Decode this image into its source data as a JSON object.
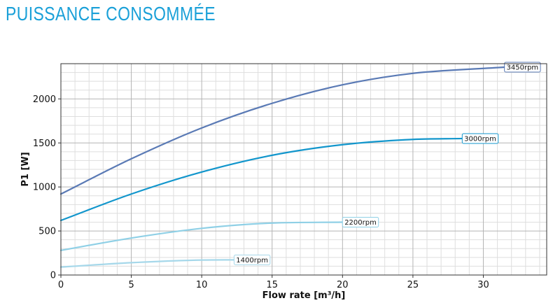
{
  "page": {
    "title": "PUISSANCE CONSOMMÉE"
  },
  "chart_data": {
    "type": "line",
    "title": "PUISSANCE CONSOMMÉE",
    "xlabel": "Flow rate [m³/h]",
    "ylabel": "P1 [W]",
    "xlim": [
      0,
      34.5
    ],
    "ylim": [
      0,
      2400
    ],
    "x_ticks": [
      0,
      5,
      10,
      15,
      20,
      25,
      30
    ],
    "y_ticks": [
      0,
      500,
      1000,
      1500,
      2000
    ],
    "grid": true,
    "series": [
      {
        "name": "3450rpm",
        "color": "#5a7ab5",
        "x": [
          0,
          5,
          10,
          15,
          20,
          25,
          31.5
        ],
        "y": [
          920,
          1320,
          1670,
          1950,
          2160,
          2290,
          2360
        ]
      },
      {
        "name": "3000rpm",
        "color": "#1296cc",
        "x": [
          0,
          5,
          10,
          15,
          20,
          25,
          28.5
        ],
        "y": [
          620,
          920,
          1170,
          1360,
          1480,
          1540,
          1550
        ]
      },
      {
        "name": "2200rpm",
        "color": "#8fd0e6",
        "x": [
          0,
          5,
          10,
          15,
          20
        ],
        "y": [
          280,
          420,
          530,
          590,
          600
        ]
      },
      {
        "name": "1400rpm",
        "color": "#a6d8ea",
        "x": [
          0,
          5,
          10,
          12.3
        ],
        "y": [
          90,
          140,
          170,
          172
        ]
      }
    ]
  }
}
